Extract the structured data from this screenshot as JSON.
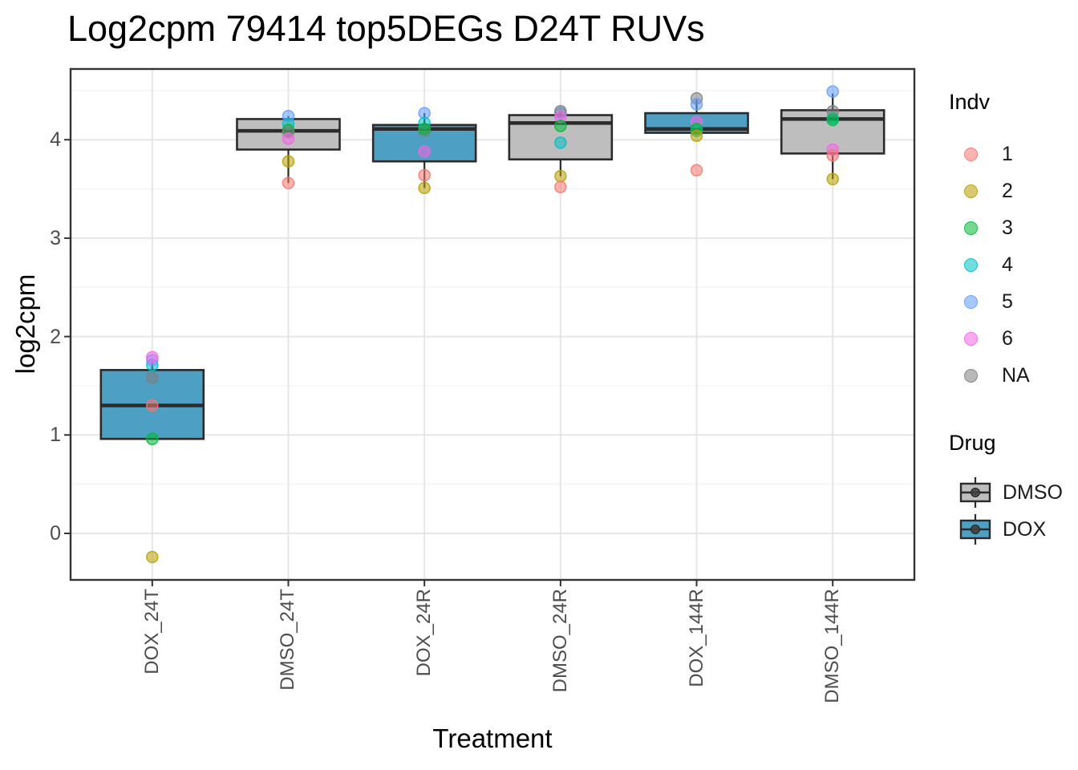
{
  "chart_data": {
    "type": "boxplot",
    "title": "Log2cpm 79414 top5DEGs D24T RUVs",
    "xlabel": "Treatment",
    "ylabel": "log2cpm",
    "categories": [
      "DOX_24T",
      "DMSO_24T",
      "DOX_24R",
      "DMSO_24R",
      "DOX_144R",
      "DMSO_144R"
    ],
    "y_ticks": [
      0,
      1,
      2,
      3,
      4
    ],
    "y_minor_ticks": [
      0.5,
      1.5,
      2.5,
      3.5,
      4.5
    ],
    "ylim": [
      -0.47,
      4.72
    ],
    "grid": "on",
    "legend_position": "right",
    "boxes": [
      {
        "category": "DOX_24T",
        "drug": "DOX",
        "q1": 0.96,
        "median": 1.3,
        "q3": 1.66,
        "whisker_low": 0.96,
        "whisker_high": 1.73
      },
      {
        "category": "DMSO_24T",
        "drug": "DMSO",
        "q1": 3.9,
        "median": 4.09,
        "q3": 4.21,
        "whisker_low": 3.56,
        "whisker_high": 4.24
      },
      {
        "category": "DOX_24R",
        "drug": "DOX",
        "q1": 3.78,
        "median": 4.11,
        "q3": 4.15,
        "whisker_low": 3.51,
        "whisker_high": 4.27
      },
      {
        "category": "DMSO_24R",
        "drug": "DMSO",
        "q1": 3.8,
        "median": 4.17,
        "q3": 4.25,
        "whisker_low": 3.63,
        "whisker_high": 4.29
      },
      {
        "category": "DOX_144R",
        "drug": "DOX",
        "q1": 4.07,
        "median": 4.11,
        "q3": 4.27,
        "whisker_low": 4.05,
        "whisker_high": 4.41
      },
      {
        "category": "DMSO_144R",
        "drug": "DMSO",
        "q1": 3.86,
        "median": 4.21,
        "q3": 4.3,
        "whisker_low": 3.6,
        "whisker_high": 4.47
      }
    ],
    "points": [
      {
        "category_index": 0,
        "indv": "4",
        "value": 1.71
      },
      {
        "category_index": 0,
        "indv": "5",
        "value": 1.76
      },
      {
        "category_index": 0,
        "indv": "6",
        "value": 1.79
      },
      {
        "category_index": 0,
        "indv": "NA",
        "value": 1.58
      },
      {
        "category_index": 0,
        "indv": "1",
        "value": 1.3
      },
      {
        "category_index": 0,
        "indv": "3",
        "value": 0.96
      },
      {
        "category_index": 0,
        "indv": "2",
        "value": -0.24
      },
      {
        "category_index": 1,
        "indv": "5",
        "value": 4.24
      },
      {
        "category_index": 1,
        "indv": "4",
        "value": 4.16
      },
      {
        "category_index": 1,
        "indv": "3",
        "value": 4.1
      },
      {
        "category_index": 1,
        "indv": "NA",
        "value": 4.08
      },
      {
        "category_index": 1,
        "indv": "6",
        "value": 4.01
      },
      {
        "category_index": 1,
        "indv": "2",
        "value": 3.78
      },
      {
        "category_index": 1,
        "indv": "1",
        "value": 3.56
      },
      {
        "category_index": 2,
        "indv": "5",
        "value": 4.27
      },
      {
        "category_index": 2,
        "indv": "4",
        "value": 4.17
      },
      {
        "category_index": 2,
        "indv": "NA",
        "value": 4.09
      },
      {
        "category_index": 2,
        "indv": "3",
        "value": 4.11
      },
      {
        "category_index": 2,
        "indv": "6",
        "value": 3.88
      },
      {
        "category_index": 2,
        "indv": "1",
        "value": 3.64
      },
      {
        "category_index": 2,
        "indv": "2",
        "value": 3.51
      },
      {
        "category_index": 3,
        "indv": "5",
        "value": 4.27
      },
      {
        "category_index": 3,
        "indv": "NA",
        "value": 4.29
      },
      {
        "category_index": 3,
        "indv": "6",
        "value": 4.23
      },
      {
        "category_index": 3,
        "indv": "3",
        "value": 4.14
      },
      {
        "category_index": 3,
        "indv": "4",
        "value": 3.97
      },
      {
        "category_index": 3,
        "indv": "2",
        "value": 3.63
      },
      {
        "category_index": 3,
        "indv": "1",
        "value": 3.52
      },
      {
        "category_index": 4,
        "indv": "NA",
        "value": 4.42
      },
      {
        "category_index": 4,
        "indv": "5",
        "value": 4.36
      },
      {
        "category_index": 4,
        "indv": "6",
        "value": 4.18
      },
      {
        "category_index": 4,
        "indv": "4",
        "value": 4.09
      },
      {
        "category_index": 4,
        "indv": "3",
        "value": 4.11
      },
      {
        "category_index": 4,
        "indv": "2",
        "value": 4.04
      },
      {
        "category_index": 4,
        "indv": "1",
        "value": 3.69
      },
      {
        "category_index": 5,
        "indv": "5",
        "value": 4.49
      },
      {
        "category_index": 5,
        "indv": "4",
        "value": 4.22
      },
      {
        "category_index": 5,
        "indv": "NA",
        "value": 4.29
      },
      {
        "category_index": 5,
        "indv": "3",
        "value": 4.2
      },
      {
        "category_index": 5,
        "indv": "6",
        "value": 3.9
      },
      {
        "category_index": 5,
        "indv": "1",
        "value": 3.84
      },
      {
        "category_index": 5,
        "indv": "2",
        "value": 3.6
      }
    ]
  },
  "legend": {
    "indv": {
      "title": "Indv",
      "entries": [
        {
          "label": "1"
        },
        {
          "label": "2"
        },
        {
          "label": "3"
        },
        {
          "label": "4"
        },
        {
          "label": "5"
        },
        {
          "label": "6"
        },
        {
          "label": "NA"
        }
      ]
    },
    "drug": {
      "title": "Drug",
      "entries": [
        {
          "label": "DMSO",
          "fill_key": "DMSO"
        },
        {
          "label": "DOX",
          "fill_key": "DOX"
        }
      ]
    }
  },
  "colors": {
    "box_fill_dox": "#4D9FC4",
    "box_fill_dmso": "#BEBEBE",
    "box_border": "#2B2B2B",
    "panel_border": "#333333",
    "grid_major": "#E6E6E6",
    "grid_minor": "#F2F2F2",
    "axis_text": "#4D4D4D",
    "legend_dot": "#404040",
    "indv": {
      "1": "#F8766D",
      "2": "#B79F00",
      "3": "#00BA38",
      "4": "#00BFC4",
      "5": "#619CFF",
      "6": "#F564E3",
      "NA": "#7F7F7F"
    },
    "point_alpha": 0.55
  }
}
